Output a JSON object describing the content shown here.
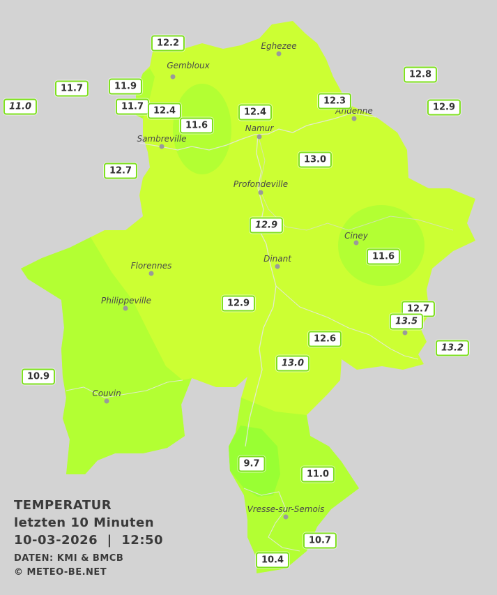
{
  "legend": {
    "title": "TEMPERATUR",
    "period": "letzten 10 Minuten",
    "datetime": "10-03-2026  |  12:50",
    "source": "DATEN: KMI & BMCB",
    "copyright": "© METEO-BE.NET"
  },
  "colors": {
    "background": "#d3d3d3",
    "warm_yellow_green": "#ccff33",
    "mid_green": "#b3ff33",
    "cool_green": "#99ff33",
    "coolest_green": "#80ff33",
    "station_border": "#7de01c"
  },
  "towns": [
    {
      "name": "Eghezee"
    },
    {
      "name": "Gembloux"
    },
    {
      "name": "Andenne"
    },
    {
      "name": "Namur"
    },
    {
      "name": "Sambreville"
    },
    {
      "name": "Profondeville"
    },
    {
      "name": "Ciney"
    },
    {
      "name": "Dinant"
    },
    {
      "name": "Florennes"
    },
    {
      "name": "Philippeville"
    },
    {
      "name": "Couvin"
    },
    {
      "name": "Vresse-sur-Semois"
    }
  ],
  "stations": [
    {
      "value": "12.2",
      "italic": false
    },
    {
      "value": "12.8",
      "italic": false
    },
    {
      "value": "11.7",
      "italic": false
    },
    {
      "value": "11.9",
      "italic": false
    },
    {
      "value": "11.0",
      "italic": true
    },
    {
      "value": "11.7",
      "italic": false
    },
    {
      "value": "12.4",
      "italic": false
    },
    {
      "value": "12.3",
      "italic": false
    },
    {
      "value": "12.9",
      "italic": false
    },
    {
      "value": "12.4",
      "italic": false
    },
    {
      "value": "11.6",
      "italic": false
    },
    {
      "value": "13.0",
      "italic": false
    },
    {
      "value": "12.7",
      "italic": false
    },
    {
      "value": "12.9",
      "italic": true
    },
    {
      "value": "11.6",
      "italic": false
    },
    {
      "value": "12.9",
      "italic": false
    },
    {
      "value": "12.7",
      "italic": false
    },
    {
      "value": "13.5",
      "italic": true
    },
    {
      "value": "12.6",
      "italic": false
    },
    {
      "value": "13.2",
      "italic": true
    },
    {
      "value": "13.0",
      "italic": true
    },
    {
      "value": "10.9",
      "italic": false
    },
    {
      "value": "9.7",
      "italic": false
    },
    {
      "value": "11.0",
      "italic": false
    },
    {
      "value": "10.7",
      "italic": false
    },
    {
      "value": "10.4",
      "italic": false
    }
  ]
}
